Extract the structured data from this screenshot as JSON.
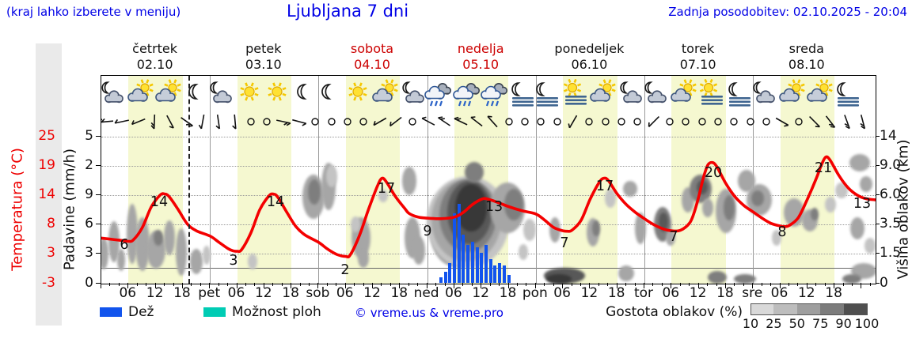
{
  "header": {
    "hint": "(kraj lahko izberete v meniju)",
    "title": "Ljubljana 7 dni",
    "updated": "Zadnja posodobitev: 02.10.2025 - 20:04"
  },
  "days": [
    {
      "name": "četrtek",
      "date": "02.10",
      "red": false
    },
    {
      "name": "petek",
      "date": "03.10",
      "red": false
    },
    {
      "name": "sobota",
      "date": "04.10",
      "red": true
    },
    {
      "name": "nedelja",
      "date": "05.10",
      "red": true
    },
    {
      "name": "ponedeljek",
      "date": "06.10",
      "red": false
    },
    {
      "name": "torek",
      "date": "07.10",
      "red": false
    },
    {
      "name": "sreda",
      "date": "08.10",
      "red": false
    }
  ],
  "axes": {
    "temp": {
      "title": "Temperatura (°C)",
      "ticks": [
        "25",
        "19",
        "14",
        "8",
        "3",
        "-3"
      ],
      "color": "#ee0000"
    },
    "precip": {
      "title": "Padavine (mm/h)",
      "ticks": [
        "5",
        "2",
        "9",
        "6",
        "3",
        "0"
      ]
    },
    "cloud": {
      "title": "Višina oblakov (km)",
      "ticks": [
        "14",
        "9.0",
        "6.0",
        "3.5",
        "1.5",
        "0"
      ]
    }
  },
  "time_axis": {
    "hour_labels": [
      "06",
      "12",
      "18"
    ],
    "day_abbrs": [
      "pet",
      "sob",
      "ned",
      "pon",
      "tor",
      "sre"
    ]
  },
  "legend": {
    "rain_label": "Dež",
    "showers_label": "Možnost ploh",
    "copyright": "© vreme.us & vreme.pro",
    "density_label": "Gostota oblakov (%)",
    "density_ticks": [
      "10",
      "25",
      "50",
      "75",
      "90",
      "100"
    ],
    "rain_color": "#1254ed",
    "showers_color": "#00ccb4",
    "density_shades": [
      "#d9d9d9",
      "#bdbdbd",
      "#9e9e9e",
      "#7c7c7c",
      "#4f4f4f"
    ]
  },
  "symbols": {
    "weather_icons": [
      "moon-cloud",
      "sun-cloud",
      "sun-cloud",
      "moon",
      "moon-cloud",
      "sun",
      "sun",
      "moon",
      "moon",
      "sun",
      "sun-cloud",
      "moon-cloud",
      "rain",
      "rain",
      "rain",
      "moon-fog",
      "moon-fog",
      "sun-fog",
      "sun-cloud",
      "moon-cloud",
      "moon-cloud",
      "sun-cloud",
      "sun-fog",
      "moon-fog",
      "moon-cloud",
      "sun-cloud",
      "sun-cloud",
      "moon-fog"
    ],
    "wind": [
      [
        "b",
        175,
        2
      ],
      [
        "b",
        168,
        1
      ],
      [
        "b",
        158,
        1
      ],
      [
        "b",
        92,
        2
      ],
      [
        "b",
        62,
        1
      ],
      [
        "b",
        35,
        2
      ],
      [
        "b",
        100,
        1
      ],
      [
        "b",
        82,
        1
      ],
      [
        "b",
        85,
        1
      ],
      [
        "c"
      ],
      [
        "c"
      ],
      [
        "b",
        12,
        2
      ],
      [
        "b",
        15,
        1
      ],
      [
        "c"
      ],
      [
        "c"
      ],
      [
        "c"
      ],
      [
        "c"
      ],
      [
        "b",
        150,
        1
      ],
      [
        "b",
        142,
        1
      ],
      [
        "c"
      ],
      [
        "b",
        208,
        1
      ],
      [
        "b",
        214,
        2
      ],
      [
        "b",
        206,
        2
      ],
      [
        "b",
        218,
        1
      ],
      [
        "b",
        228,
        1
      ],
      [
        "c"
      ],
      [
        "c"
      ],
      [
        "c"
      ],
      [
        "c"
      ],
      [
        "b",
        120,
        1
      ],
      [
        "c"
      ],
      [
        "c"
      ],
      [
        "c"
      ],
      [
        "c"
      ],
      [
        "b",
        135,
        1
      ],
      [
        "c"
      ],
      [
        "c"
      ],
      [
        "c"
      ],
      [
        "c"
      ],
      [
        "c"
      ],
      [
        "c"
      ],
      [
        "c"
      ],
      [
        "b",
        30,
        1
      ],
      [
        "c"
      ],
      [
        "b",
        45,
        1
      ],
      [
        "b",
        52,
        2
      ],
      [
        "b",
        70,
        2
      ],
      [
        "b",
        75,
        2
      ]
    ]
  },
  "chart_data": {
    "type": "line",
    "title": "Ljubljana 7 dni",
    "x_axis": {
      "unit": "hours",
      "start": "četrtek 02.10 00:00",
      "end": "sreda 08.10 24:00 (+3h)",
      "hours_shown": 171,
      "day_tick_labels": [
        "06",
        "12",
        "18"
      ],
      "day_boundary_labels": [
        "pet",
        "sob",
        "ned",
        "pon",
        "tor",
        "sre"
      ]
    },
    "y_axes": {
      "temperature_C": {
        "tick_values": [
          25,
          19,
          14,
          8,
          3,
          -3
        ],
        "range": [
          -3,
          25
        ],
        "zero_line": true
      },
      "precipitation_mm_h": {
        "tick_labels": [
          "5",
          "2",
          "9",
          "6",
          "3",
          "0"
        ],
        "range": [
          0,
          15
        ]
      },
      "cloud_height_km": {
        "tick_labels": [
          "14",
          "9.0",
          "6.0",
          "3.5",
          "1.5",
          "0"
        ]
      }
    },
    "now_line_hour": 19.2,
    "series": [
      {
        "name": "Temperatura",
        "type": "line",
        "color": "#f40000",
        "points_hour_degC": [
          [
            0,
            5.6
          ],
          [
            3,
            5.3
          ],
          [
            5,
            5.1
          ],
          [
            6,
            5.0
          ],
          [
            7,
            5.2
          ],
          [
            9,
            7.5
          ],
          [
            11,
            11.5
          ],
          [
            13,
            13.8
          ],
          [
            14,
            14.0
          ],
          [
            15,
            13.5
          ],
          [
            17,
            11.0
          ],
          [
            19,
            8.3
          ],
          [
            21,
            7.0
          ],
          [
            24,
            6.0
          ],
          [
            26,
            4.8
          ],
          [
            28,
            3.6
          ],
          [
            29,
            3.2
          ],
          [
            30,
            3.1
          ],
          [
            31,
            3.4
          ],
          [
            33,
            6.5
          ],
          [
            35,
            11.0
          ],
          [
            37,
            13.6
          ],
          [
            38,
            14.0
          ],
          [
            39,
            13.4
          ],
          [
            41,
            10.5
          ],
          [
            43,
            7.8
          ],
          [
            45,
            6.2
          ],
          [
            48,
            4.8
          ],
          [
            50,
            3.5
          ],
          [
            52,
            2.5
          ],
          [
            54,
            2.1
          ],
          [
            55,
            2.4
          ],
          [
            57,
            6.0
          ],
          [
            59,
            11.0
          ],
          [
            61,
            15.5
          ],
          [
            62,
            17.0
          ],
          [
            63,
            16.3
          ],
          [
            65,
            13.5
          ],
          [
            67,
            11.3
          ],
          [
            68,
            10.3
          ],
          [
            70,
            9.6
          ],
          [
            72,
            9.4
          ],
          [
            75,
            9.3
          ],
          [
            78,
            9.6
          ],
          [
            80,
            10.5
          ],
          [
            82,
            12.0
          ],
          [
            84,
            13.0
          ],
          [
            85,
            13.1
          ],
          [
            87,
            12.6
          ],
          [
            90,
            11.6
          ],
          [
            93,
            10.8
          ],
          [
            96,
            10.2
          ],
          [
            98,
            9.0
          ],
          [
            100,
            7.6
          ],
          [
            102,
            7.0
          ],
          [
            103,
            6.9
          ],
          [
            104,
            7.1
          ],
          [
            106,
            9.0
          ],
          [
            108,
            13.0
          ],
          [
            110,
            16.2
          ],
          [
            111,
            17.0
          ],
          [
            112,
            16.6
          ],
          [
            114,
            14.0
          ],
          [
            116,
            12.0
          ],
          [
            118,
            10.5
          ],
          [
            120,
            9.3
          ],
          [
            122,
            8.2
          ],
          [
            124,
            7.4
          ],
          [
            126,
            7.0
          ],
          [
            128,
            7.1
          ],
          [
            130,
            8.5
          ],
          [
            131,
            10.5
          ],
          [
            132,
            13.5
          ],
          [
            133,
            17.0
          ],
          [
            134,
            19.5
          ],
          [
            135,
            20.0
          ],
          [
            136,
            19.2
          ],
          [
            138,
            16.0
          ],
          [
            140,
            13.5
          ],
          [
            142,
            11.8
          ],
          [
            144,
            10.6
          ],
          [
            146,
            9.4
          ],
          [
            148,
            8.4
          ],
          [
            150,
            7.9
          ],
          [
            151,
            7.8
          ],
          [
            152,
            8.0
          ],
          [
            154,
            9.5
          ],
          [
            156,
            13.0
          ],
          [
            158,
            17.0
          ],
          [
            159,
            19.3
          ],
          [
            160,
            21.0
          ],
          [
            161,
            20.5
          ],
          [
            163,
            17.5
          ],
          [
            165,
            15.2
          ],
          [
            167,
            13.8
          ],
          [
            169,
            13.1
          ],
          [
            171,
            12.9
          ]
        ]
      },
      {
        "name": "Dež",
        "type": "bar",
        "color": "#1254ed",
        "start_hour": 75,
        "interval_hours": 1,
        "values_mm_h": [
          0.6,
          1.1,
          2.0,
          7.1,
          8.1,
          4.9,
          3.9,
          4.2,
          3.6,
          3.1,
          3.9,
          2.4,
          1.8,
          2.0,
          1.8,
          0.8
        ]
      }
    ],
    "point_labels": [
      {
        "x": 157,
        "y": 310,
        "t": "6"
      },
      {
        "x": 201,
        "y": 256,
        "t": "14"
      },
      {
        "x": 295,
        "y": 330,
        "t": "3"
      },
      {
        "x": 348,
        "y": 256,
        "t": "14"
      },
      {
        "x": 436,
        "y": 342,
        "t": "2"
      },
      {
        "x": 488,
        "y": 239,
        "t": "17"
      },
      {
        "x": 540,
        "y": 293,
        "t": "9"
      },
      {
        "x": 624,
        "y": 262,
        "t": "13"
      },
      {
        "x": 713,
        "y": 308,
        "t": "7"
      },
      {
        "x": 764,
        "y": 236,
        "t": "17"
      },
      {
        "x": 851,
        "y": 300,
        "t": "7"
      },
      {
        "x": 901,
        "y": 219,
        "t": "20"
      },
      {
        "x": 988,
        "y": 294,
        "t": "8"
      },
      {
        "x": 1040,
        "y": 213,
        "t": "21"
      },
      {
        "x": 1089,
        "y": 258,
        "t": "13"
      }
    ],
    "cloud_blobs": [
      {
        "x": 130,
        "y": 320,
        "rx": 6,
        "ry": 20,
        "s": 2
      },
      {
        "x": 143,
        "y": 305,
        "rx": 7,
        "ry": 26,
        "s": 2
      },
      {
        "x": 152,
        "y": 328,
        "rx": 5,
        "ry": 14,
        "s": 2
      },
      {
        "x": 166,
        "y": 295,
        "rx": 7,
        "ry": 38,
        "s": 2
      },
      {
        "x": 179,
        "y": 308,
        "rx": 9,
        "ry": 34,
        "s": 2
      },
      {
        "x": 196,
        "y": 315,
        "rx": 12,
        "ry": 24,
        "s": 2
      },
      {
        "x": 199,
        "y": 300,
        "rx": 6,
        "ry": 10,
        "s": 3
      },
      {
        "x": 213,
        "y": 300,
        "rx": 7,
        "ry": 22,
        "s": 2
      },
      {
        "x": 228,
        "y": 318,
        "rx": 7,
        "ry": 30,
        "s": 2
      },
      {
        "x": 247,
        "y": 330,
        "rx": 8,
        "ry": 16,
        "s": 2
      },
      {
        "x": 260,
        "y": 322,
        "rx": 5,
        "ry": 12,
        "s": 1
      },
      {
        "x": 318,
        "y": 330,
        "rx": 6,
        "ry": 10,
        "s": 1
      },
      {
        "x": 395,
        "y": 248,
        "rx": 14,
        "ry": 28,
        "s": 2
      },
      {
        "x": 396,
        "y": 242,
        "rx": 8,
        "ry": 16,
        "s": 3
      },
      {
        "x": 414,
        "y": 235,
        "rx": 9,
        "ry": 30,
        "s": 2
      },
      {
        "x": 418,
        "y": 222,
        "rx": 7,
        "ry": 14,
        "s": 1
      },
      {
        "x": 455,
        "y": 300,
        "rx": 12,
        "ry": 26,
        "s": 2
      },
      {
        "x": 458,
        "y": 326,
        "rx": 7,
        "ry": 12,
        "s": 2
      },
      {
        "x": 448,
        "y": 283,
        "rx": 6,
        "ry": 10,
        "s": 1
      },
      {
        "x": 483,
        "y": 247,
        "rx": 6,
        "ry": 8,
        "s": 1
      },
      {
        "x": 516,
        "y": 228,
        "rx": 9,
        "ry": 18,
        "s": 2
      },
      {
        "x": 520,
        "y": 300,
        "rx": 10,
        "ry": 26,
        "s": 2
      },
      {
        "x": 528,
        "y": 316,
        "rx": 8,
        "ry": 18,
        "s": 2
      },
      {
        "x": 575,
        "y": 295,
        "rx": 32,
        "ry": 42,
        "s": 2
      },
      {
        "x": 590,
        "y": 280,
        "rx": 52,
        "ry": 58,
        "s": 1
      },
      {
        "x": 588,
        "y": 278,
        "rx": 44,
        "ry": 52,
        "s": 2
      },
      {
        "x": 590,
        "y": 272,
        "rx": 36,
        "ry": 46,
        "s": 3
      },
      {
        "x": 592,
        "y": 268,
        "rx": 28,
        "ry": 40,
        "s": 4
      },
      {
        "x": 594,
        "y": 262,
        "rx": 20,
        "ry": 30,
        "s": 5
      },
      {
        "x": 598,
        "y": 217,
        "rx": 12,
        "ry": 13,
        "s": 3
      },
      {
        "x": 640,
        "y": 262,
        "rx": 22,
        "ry": 32,
        "s": 2
      },
      {
        "x": 648,
        "y": 258,
        "rx": 12,
        "ry": 20,
        "s": 3
      },
      {
        "x": 660,
        "y": 318,
        "rx": 6,
        "ry": 10,
        "s": 1
      },
      {
        "x": 668,
        "y": 290,
        "rx": 8,
        "ry": 14,
        "s": 1
      },
      {
        "x": 700,
        "y": 290,
        "rx": 7,
        "ry": 16,
        "s": 2
      },
      {
        "x": 712,
        "y": 348,
        "rx": 26,
        "ry": 10,
        "s": 4
      },
      {
        "x": 705,
        "y": 352,
        "rx": 16,
        "ry": 6,
        "s": 5
      },
      {
        "x": 748,
        "y": 293,
        "rx": 8,
        "ry": 18,
        "s": 2
      },
      {
        "x": 752,
        "y": 288,
        "rx": 5,
        "ry": 10,
        "s": 3
      },
      {
        "x": 770,
        "y": 250,
        "rx": 7,
        "ry": 12,
        "s": 1
      },
      {
        "x": 795,
        "y": 238,
        "rx": 9,
        "ry": 10,
        "s": 2
      },
      {
        "x": 790,
        "y": 345,
        "rx": 10,
        "ry": 10,
        "s": 2
      },
      {
        "x": 808,
        "y": 288,
        "rx": 7,
        "ry": 20,
        "s": 2
      },
      {
        "x": 836,
        "y": 283,
        "rx": 11,
        "ry": 22,
        "s": 3
      },
      {
        "x": 837,
        "y": 280,
        "rx": 6,
        "ry": 12,
        "s": 4
      },
      {
        "x": 846,
        "y": 300,
        "rx": 6,
        "ry": 10,
        "s": 2
      },
      {
        "x": 868,
        "y": 252,
        "rx": 8,
        "ry": 16,
        "s": 2
      },
      {
        "x": 884,
        "y": 238,
        "rx": 14,
        "ry": 18,
        "s": 3
      },
      {
        "x": 886,
        "y": 236,
        "rx": 7,
        "ry": 9,
        "s": 4
      },
      {
        "x": 893,
        "y": 262,
        "rx": 7,
        "ry": 12,
        "s": 2
      },
      {
        "x": 905,
        "y": 350,
        "rx": 12,
        "ry": 8,
        "s": 3
      },
      {
        "x": 940,
        "y": 352,
        "rx": 14,
        "ry": 6,
        "s": 3
      },
      {
        "x": 916,
        "y": 266,
        "rx": 13,
        "ry": 28,
        "s": 2
      },
      {
        "x": 920,
        "y": 262,
        "rx": 7,
        "ry": 16,
        "s": 3
      },
      {
        "x": 942,
        "y": 228,
        "rx": 11,
        "ry": 14,
        "s": 2
      },
      {
        "x": 958,
        "y": 252,
        "rx": 16,
        "ry": 20,
        "s": 2
      },
      {
        "x": 956,
        "y": 250,
        "rx": 8,
        "ry": 10,
        "s": 3
      },
      {
        "x": 980,
        "y": 300,
        "rx": 6,
        "ry": 10,
        "s": 1
      },
      {
        "x": 1002,
        "y": 268,
        "rx": 13,
        "ry": 18,
        "s": 2
      },
      {
        "x": 1022,
        "y": 278,
        "rx": 10,
        "ry": 14,
        "s": 2
      },
      {
        "x": 1028,
        "y": 270,
        "rx": 5,
        "ry": 8,
        "s": 3
      },
      {
        "x": 1048,
        "y": 258,
        "rx": 7,
        "ry": 10,
        "s": 1
      },
      {
        "x": 1062,
        "y": 240,
        "rx": 8,
        "ry": 10,
        "s": 1
      },
      {
        "x": 1085,
        "y": 205,
        "rx": 13,
        "ry": 11,
        "s": 2
      },
      {
        "x": 1093,
        "y": 232,
        "rx": 8,
        "ry": 10,
        "s": 2
      },
      {
        "x": 1082,
        "y": 288,
        "rx": 9,
        "ry": 14,
        "s": 2
      },
      {
        "x": 1090,
        "y": 342,
        "rx": 16,
        "ry": 10,
        "s": 2
      },
      {
        "x": 1098,
        "y": 310,
        "rx": 7,
        "ry": 10,
        "s": 1
      },
      {
        "x": 1075,
        "y": 352,
        "rx": 12,
        "ry": 6,
        "s": 3
      }
    ]
  }
}
